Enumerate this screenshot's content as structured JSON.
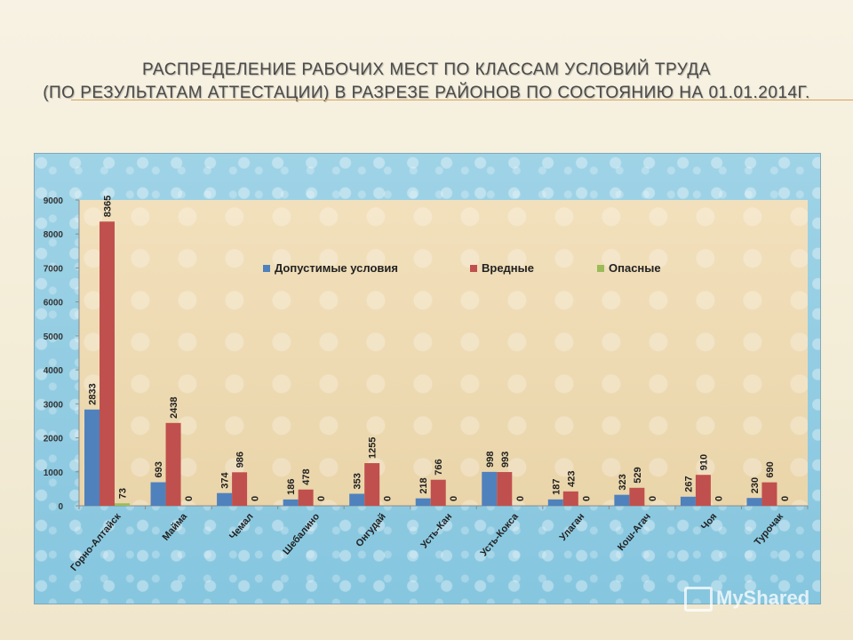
{
  "slide": {
    "title_line1": "Распределение рабочих мест по классам условий труда",
    "title_line2": "(по результатам аттестации) в разрезе районов по состоянию на 01.01.2014г."
  },
  "watermark": {
    "text": "MyShared"
  },
  "chart_data": {
    "type": "bar",
    "categories": [
      "Горно-Алтайск",
      "Майма",
      "Чемал",
      "Шебалино",
      "Онгудай",
      "Усть-Кан",
      "Усть-Кокса",
      "Улаган",
      "Кош-Агач",
      "Чоя",
      "Турочак"
    ],
    "series": [
      {
        "name": "Допустимые условия",
        "color": "#4f81bd",
        "values": [
          2833,
          693,
          374,
          186,
          353,
          218,
          998,
          187,
          323,
          267,
          230
        ]
      },
      {
        "name": "Вредные",
        "color": "#c0504d",
        "values": [
          8365,
          2438,
          986,
          478,
          1255,
          766,
          993,
          423,
          529,
          910,
          690
        ]
      },
      {
        "name": "Опасные",
        "color": "#9bbb59",
        "values": [
          73,
          0,
          0,
          0,
          0,
          0,
          0,
          0,
          0,
          0,
          0
        ]
      }
    ],
    "y_ticks": [
      0,
      1000,
      2000,
      3000,
      4000,
      5000,
      6000,
      7000,
      8000,
      9000
    ],
    "ylim": [
      0,
      9000
    ],
    "legend_position": "top-center",
    "grid": false,
    "data_labels": true
  }
}
